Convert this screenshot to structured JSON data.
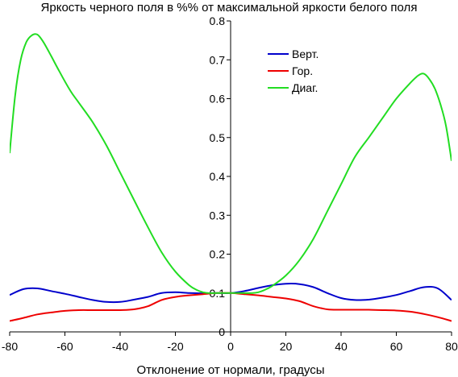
{
  "chart_data": {
    "type": "line",
    "title": "Яркость черного поля в %% от максимальной яркости белого поля",
    "xlabel": "Отклонение от нормали, градусы",
    "ylabel": "",
    "xlim": [
      -80,
      80
    ],
    "ylim": [
      0,
      0.8
    ],
    "x_ticks": [
      "-80",
      "-60",
      "-40",
      "-20",
      "0",
      "20",
      "40",
      "60",
      "80"
    ],
    "y_ticks": [
      "0",
      "0.1",
      "0.2",
      "0.3",
      "0.4",
      "0.5",
      "0.6",
      "0.7",
      "0.8"
    ],
    "x_tick_values": [
      -80,
      -60,
      -40,
      -20,
      0,
      20,
      40,
      60,
      80
    ],
    "y_tick_values": [
      0,
      0.1,
      0.2,
      0.3,
      0.4,
      0.5,
      0.6,
      0.7,
      0.8
    ],
    "grid": false,
    "legend": "top-right",
    "series": [
      {
        "name": "Верт.",
        "color": "#0000cc",
        "x": [
          -80,
          -75,
          -70,
          -65,
          -60,
          -55,
          -50,
          -45,
          -40,
          -35,
          -30,
          -25,
          -20,
          -15,
          -10,
          -5,
          0,
          5,
          10,
          15,
          20,
          25,
          30,
          35,
          40,
          45,
          50,
          55,
          60,
          65,
          70,
          75,
          80
        ],
        "y": [
          0.095,
          0.11,
          0.112,
          0.105,
          0.098,
          0.09,
          0.082,
          0.077,
          0.077,
          0.083,
          0.09,
          0.1,
          0.102,
          0.1,
          0.099,
          0.1,
          0.1,
          0.105,
          0.113,
          0.12,
          0.124,
          0.123,
          0.115,
          0.1,
          0.087,
          0.082,
          0.083,
          0.088,
          0.095,
          0.105,
          0.115,
          0.112,
          0.082
        ]
      },
      {
        "name": "Гор.",
        "color": "#ee0000",
        "x": [
          -80,
          -75,
          -70,
          -65,
          -60,
          -55,
          -50,
          -45,
          -40,
          -35,
          -30,
          -25,
          -20,
          -15,
          -10,
          -5,
          0,
          5,
          10,
          15,
          20,
          25,
          30,
          35,
          40,
          45,
          50,
          55,
          60,
          65,
          70,
          75,
          80
        ],
        "y": [
          0.028,
          0.036,
          0.045,
          0.05,
          0.054,
          0.056,
          0.056,
          0.056,
          0.056,
          0.058,
          0.066,
          0.082,
          0.09,
          0.094,
          0.097,
          0.1,
          0.1,
          0.097,
          0.094,
          0.09,
          0.086,
          0.079,
          0.066,
          0.058,
          0.057,
          0.057,
          0.057,
          0.056,
          0.055,
          0.052,
          0.046,
          0.038,
          0.028
        ]
      },
      {
        "name": "Диаг.",
        "color": "#22dd22",
        "x": [
          -80,
          -78,
          -76,
          -74,
          -72,
          -70,
          -68,
          -65,
          -62,
          -58,
          -55,
          -50,
          -45,
          -40,
          -35,
          -30,
          -25,
          -20,
          -15,
          -12,
          -10,
          -8,
          -5,
          0,
          5,
          8,
          10,
          12,
          15,
          20,
          25,
          30,
          35,
          40,
          45,
          50,
          55,
          60,
          65,
          68,
          70,
          72,
          74,
          76,
          78,
          80
        ],
        "y": [
          0.46,
          0.61,
          0.7,
          0.745,
          0.763,
          0.765,
          0.748,
          0.71,
          0.67,
          0.62,
          0.59,
          0.54,
          0.48,
          0.41,
          0.34,
          0.27,
          0.205,
          0.155,
          0.12,
          0.107,
          0.102,
          0.1,
          0.1,
          0.1,
          0.1,
          0.1,
          0.102,
          0.107,
          0.118,
          0.145,
          0.185,
          0.24,
          0.31,
          0.38,
          0.45,
          0.5,
          0.55,
          0.6,
          0.64,
          0.66,
          0.664,
          0.65,
          0.625,
          0.585,
          0.53,
          0.44
        ]
      }
    ]
  }
}
